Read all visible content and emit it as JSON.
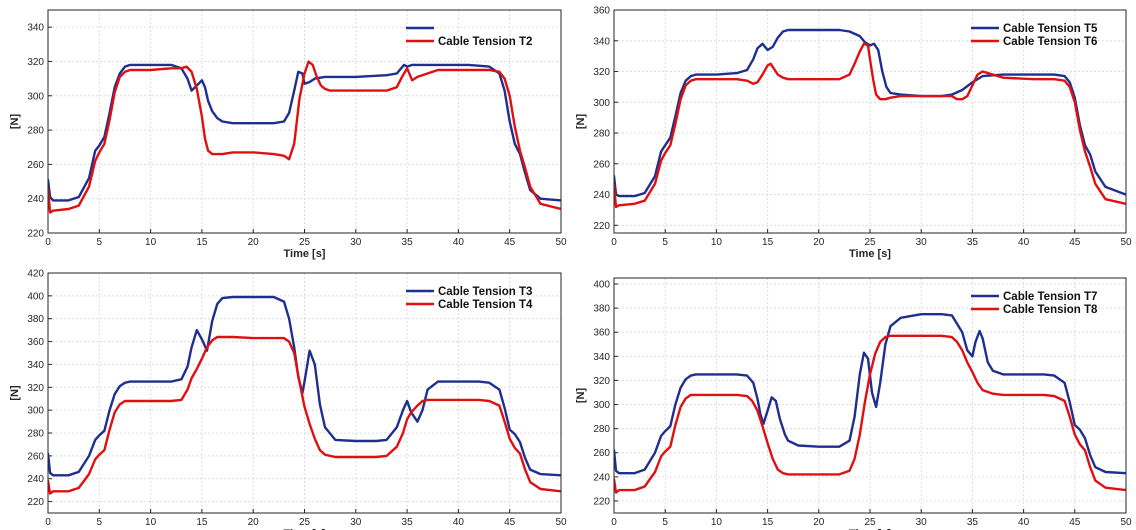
{
  "chart_data": [
    {
      "type": "line",
      "title": "",
      "xlabel": "Time [s]",
      "ylabel": "[N]",
      "xlim": [
        0,
        50
      ],
      "ylim": [
        220,
        350
      ],
      "xticks": [
        "0",
        "5",
        "10",
        "15",
        "20",
        "25",
        "30",
        "35",
        "40",
        "45",
        "50"
      ],
      "yticks": [
        "220",
        "240",
        "260",
        "280",
        "300",
        "320",
        "340"
      ],
      "grid": true,
      "legend_position": "top-right",
      "series": [
        {
          "name": "",
          "color": "#1f2f8f",
          "x": [
            0,
            0.2,
            0.5,
            2,
            3,
            4,
            4.6,
            5,
            5.5,
            6,
            6.5,
            7,
            7.5,
            8,
            9,
            10,
            12,
            13,
            13.6,
            14,
            14.5,
            15,
            15.3,
            15.6,
            16,
            16.5,
            17,
            18,
            20,
            22,
            23,
            23.5,
            24,
            24.4,
            24.8,
            25,
            25.5,
            26,
            27,
            30,
            33,
            34,
            34.7,
            35,
            35.5,
            36,
            38,
            41,
            43,
            44,
            44.5,
            45,
            45.5,
            46,
            46.5,
            47,
            48,
            50
          ],
          "y": [
            251,
            241,
            239,
            239,
            241,
            252,
            268,
            271,
            276,
            290,
            305,
            313,
            317,
            318,
            318,
            318,
            318,
            316,
            310,
            303,
            306,
            309,
            305,
            297,
            291,
            287,
            285,
            284,
            284,
            284,
            285,
            290,
            303,
            314,
            313,
            307,
            308,
            310,
            311,
            311,
            312,
            313,
            318,
            317,
            318,
            318,
            318,
            318,
            317,
            313,
            303,
            285,
            272,
            266,
            255,
            245,
            240,
            239
          ]
        },
        {
          "name": "Cable Tension T2",
          "color": "#e01010",
          "x": [
            0,
            0.2,
            0.5,
            2,
            3,
            4,
            4.6,
            5,
            5.5,
            6,
            6.5,
            7,
            7.5,
            8,
            10,
            12,
            13,
            13.5,
            14,
            14.5,
            15,
            15.3,
            15.6,
            16,
            17,
            18,
            20,
            22,
            23,
            23.5,
            24,
            24.5,
            25,
            25.4,
            25.8,
            26.2,
            26.6,
            27,
            27.5,
            28,
            30,
            33,
            34,
            34.5,
            35,
            35.5,
            36,
            38,
            41,
            43,
            44,
            44.5,
            45,
            45.5,
            46,
            46.5,
            47,
            48,
            50
          ],
          "y": [
            246,
            232,
            233,
            234,
            236,
            247,
            262,
            267,
            272,
            286,
            302,
            311,
            314,
            315,
            315,
            316,
            316,
            317,
            314,
            304,
            288,
            275,
            268,
            266,
            266,
            267,
            267,
            266,
            265,
            263,
            272,
            298,
            313,
            320,
            318,
            311,
            306,
            304,
            303,
            303,
            303,
            303,
            305,
            311,
            316,
            309,
            311,
            315,
            315,
            315,
            314,
            310,
            300,
            282,
            268,
            258,
            247,
            237,
            234
          ]
        }
      ]
    },
    {
      "type": "line",
      "title": "",
      "xlabel": "Time [s]",
      "ylabel": "[N]",
      "xlim": [
        0,
        50
      ],
      "ylim": [
        215,
        360
      ],
      "xticks": [
        "0",
        "5",
        "10",
        "15",
        "20",
        "25",
        "30",
        "35",
        "40",
        "45",
        "50"
      ],
      "yticks": [
        "220",
        "240",
        "260",
        "280",
        "300",
        "320",
        "340",
        "360"
      ],
      "grid": true,
      "legend_position": "top-right",
      "series": [
        {
          "name": "Cable Tension T5",
          "color": "#1f2f8f",
          "x": [
            0,
            0.2,
            0.5,
            2,
            3,
            4,
            4.6,
            5,
            5.5,
            6,
            6.5,
            7,
            7.5,
            8,
            10,
            12,
            13,
            13.6,
            14,
            14.5,
            15,
            15.5,
            16,
            16.5,
            17,
            18,
            20,
            22,
            23,
            24,
            24.5,
            25,
            25.4,
            25.8,
            26.2,
            26.6,
            27,
            28,
            30,
            32,
            33,
            34,
            35,
            36,
            38,
            41,
            43,
            44,
            44.5,
            45,
            45.5,
            46,
            46.5,
            47,
            48,
            50
          ],
          "y": [
            252,
            240,
            239,
            239,
            241,
            252,
            268,
            272,
            277,
            291,
            306,
            314,
            317,
            318,
            318,
            319,
            321,
            328,
            335,
            338,
            334,
            336,
            342,
            346,
            347,
            347,
            347,
            347,
            346,
            343,
            339,
            337,
            338,
            334,
            320,
            310,
            306,
            305,
            304,
            304,
            305,
            308,
            313,
            317,
            318,
            318,
            318,
            317,
            313,
            303,
            285,
            272,
            266,
            255,
            245,
            240
          ]
        },
        {
          "name": "Cable Tension T6",
          "color": "#e01010",
          "x": [
            0,
            0.2,
            0.5,
            2,
            3,
            4,
            4.6,
            5,
            5.5,
            6,
            6.5,
            7,
            7.5,
            8,
            10,
            12,
            13,
            13.6,
            14,
            14.5,
            15,
            15.3,
            15.6,
            16,
            16.5,
            17,
            18,
            20,
            22,
            23,
            23.5,
            24,
            24.4,
            24.8,
            25,
            25.3,
            25.6,
            26,
            26.5,
            27,
            28,
            30,
            32,
            33,
            33.5,
            34,
            34.5,
            35,
            35.5,
            36,
            38,
            41,
            43,
            44,
            44.5,
            45,
            45.5,
            46,
            46.5,
            47,
            48,
            50
          ],
          "y": [
            246,
            232,
            233,
            234,
            236,
            247,
            262,
            267,
            272,
            286,
            302,
            311,
            314,
            315,
            315,
            315,
            314,
            312,
            313,
            318,
            324,
            325,
            322,
            318,
            316,
            315,
            315,
            315,
            315,
            318,
            325,
            333,
            338,
            337,
            328,
            315,
            305,
            302,
            302,
            303,
            304,
            304,
            304,
            304,
            302,
            302,
            304,
            311,
            318,
            320,
            316,
            315,
            315,
            314,
            310,
            300,
            282,
            268,
            258,
            247,
            237,
            234
          ]
        }
      ]
    },
    {
      "type": "line",
      "title": "",
      "xlabel": "Time [s]",
      "ylabel": "[N]",
      "xlim": [
        0,
        50
      ],
      "ylim": [
        210,
        420
      ],
      "xticks": [
        "0",
        "5",
        "10",
        "15",
        "20",
        "25",
        "30",
        "35",
        "40",
        "45",
        "50"
      ],
      "yticks": [
        "220",
        "240",
        "260",
        "280",
        "300",
        "320",
        "340",
        "360",
        "380",
        "400",
        "420"
      ],
      "grid": true,
      "legend_position": "top-right",
      "series": [
        {
          "name": "Cable Tension T3",
          "color": "#1f2f8f",
          "x": [
            0,
            0.2,
            0.5,
            2,
            3,
            4,
            4.6,
            5,
            5.5,
            6,
            6.5,
            7,
            7.5,
            8,
            10,
            12,
            13,
            13.6,
            14,
            14.5,
            15,
            15.5,
            16,
            16.5,
            17,
            18,
            20,
            22,
            23,
            23.5,
            24,
            24.4,
            24.8,
            25,
            25.5,
            26,
            26.5,
            27,
            28,
            30,
            32,
            33,
            34,
            34.6,
            35,
            35.4,
            36,
            36.5,
            37,
            38,
            40,
            42,
            43,
            44,
            44.5,
            45,
            45.5,
            46,
            46.5,
            47,
            48,
            50
          ],
          "y": [
            262,
            245,
            243,
            243,
            246,
            260,
            274,
            278,
            282,
            300,
            314,
            321,
            324,
            325,
            325,
            325,
            327,
            338,
            355,
            370,
            362,
            352,
            378,
            393,
            398,
            399,
            399,
            399,
            395,
            380,
            355,
            329,
            315,
            325,
            352,
            340,
            305,
            285,
            274,
            273,
            273,
            274,
            285,
            300,
            308,
            298,
            290,
            300,
            318,
            325,
            325,
            325,
            324,
            318,
            302,
            283,
            279,
            272,
            258,
            248,
            244,
            243
          ]
        },
        {
          "name": "Cable Tension T4",
          "color": "#e01010",
          "x": [
            0,
            0.2,
            0.5,
            2,
            3,
            4,
            4.6,
            5,
            5.5,
            6,
            6.5,
            7,
            7.5,
            8,
            10,
            12,
            13,
            13.6,
            14,
            14.5,
            15,
            15.5,
            16,
            16.5,
            17,
            18,
            20,
            22,
            23,
            23.5,
            24,
            24.4,
            24.8,
            25,
            25.5,
            26,
            26.5,
            27,
            28,
            30,
            32,
            33,
            34,
            34.6,
            35,
            35.4,
            36,
            36.5,
            37,
            38,
            40,
            42,
            43,
            44,
            44.5,
            45,
            45.5,
            46,
            46.5,
            47,
            48,
            50
          ],
          "y": [
            238,
            227,
            229,
            229,
            232,
            244,
            257,
            261,
            265,
            283,
            298,
            305,
            308,
            308,
            308,
            308,
            309,
            318,
            328,
            336,
            345,
            355,
            361,
            364,
            364,
            364,
            363,
            363,
            363,
            360,
            350,
            330,
            312,
            303,
            288,
            275,
            265,
            261,
            259,
            259,
            259,
            260,
            268,
            280,
            292,
            298,
            304,
            308,
            309,
            309,
            309,
            309,
            308,
            304,
            290,
            275,
            267,
            262,
            248,
            237,
            231,
            229
          ]
        }
      ]
    },
    {
      "type": "line",
      "title": "",
      "xlabel": "Time [s]",
      "ylabel": "[N]",
      "xlim": [
        0,
        50
      ],
      "ylim": [
        210,
        405
      ],
      "xticks": [
        "0",
        "5",
        "10",
        "15",
        "20",
        "25",
        "30",
        "35",
        "40",
        "45",
        "50"
      ],
      "yticks": [
        "220",
        "240",
        "260",
        "280",
        "300",
        "320",
        "340",
        "360",
        "380",
        "400"
      ],
      "grid": true,
      "legend_position": "top-right",
      "series": [
        {
          "name": "Cable Tension T7",
          "color": "#1f2f8f",
          "x": [
            0,
            0.2,
            0.5,
            2,
            3,
            4,
            4.6,
            5,
            5.5,
            6,
            6.5,
            7,
            7.5,
            8,
            10,
            12,
            13,
            13.6,
            14,
            14.3,
            14.6,
            15,
            15.4,
            15.8,
            16.2,
            16.7,
            17,
            18,
            20,
            22,
            23,
            23.5,
            24,
            24.4,
            24.8,
            25.2,
            25.6,
            26,
            26.5,
            27,
            28,
            30,
            32,
            33,
            34,
            34.5,
            35,
            35.3,
            35.7,
            36,
            36.5,
            37,
            38,
            40,
            42,
            43,
            44,
            44.5,
            45,
            45.5,
            46,
            46.5,
            47,
            48,
            50
          ],
          "y": [
            262,
            245,
            243,
            243,
            246,
            260,
            274,
            278,
            282,
            300,
            314,
            321,
            324,
            325,
            325,
            325,
            324,
            318,
            305,
            292,
            284,
            295,
            306,
            303,
            288,
            275,
            270,
            266,
            265,
            265,
            270,
            290,
            325,
            343,
            338,
            310,
            298,
            318,
            350,
            365,
            372,
            375,
            375,
            374,
            360,
            345,
            340,
            352,
            361,
            355,
            335,
            328,
            325,
            325,
            325,
            324,
            318,
            302,
            283,
            279,
            272,
            258,
            248,
            244,
            243
          ]
        },
        {
          "name": "Cable Tension T8",
          "color": "#e01010",
          "x": [
            0,
            0.2,
            0.5,
            2,
            3,
            4,
            4.6,
            5,
            5.5,
            6,
            6.5,
            7,
            7.5,
            8,
            10,
            12,
            13,
            13.5,
            14,
            14.5,
            15,
            15.5,
            16,
            16.5,
            17,
            18,
            20,
            22,
            23,
            23.5,
            24,
            24.5,
            25,
            25.5,
            26,
            26.5,
            27,
            28,
            30,
            32,
            33,
            33.5,
            34,
            34.5,
            35,
            35.5,
            36,
            37,
            38,
            40,
            42,
            43,
            44,
            44.5,
            45,
            45.5,
            46,
            46.5,
            47,
            48,
            50
          ],
          "y": [
            238,
            227,
            229,
            229,
            232,
            244,
            257,
            261,
            265,
            283,
            298,
            305,
            308,
            308,
            308,
            308,
            307,
            303,
            295,
            282,
            268,
            255,
            246,
            243,
            242,
            242,
            242,
            242,
            245,
            255,
            275,
            302,
            325,
            342,
            352,
            356,
            357,
            357,
            357,
            357,
            356,
            352,
            345,
            335,
            327,
            318,
            312,
            309,
            308,
            308,
            308,
            307,
            303,
            290,
            275,
            267,
            262,
            248,
            237,
            231,
            229
          ]
        }
      ]
    }
  ]
}
